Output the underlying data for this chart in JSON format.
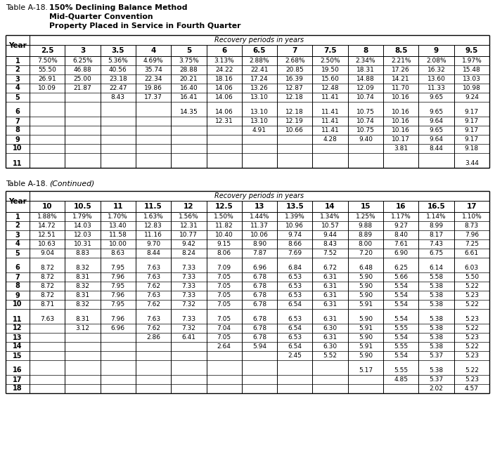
{
  "title_prefix": "Table A-18.",
  "title_bold": "  150% Declining Balance Method",
  "title_line2": "        Mid-Quarter Convention",
  "title_line3": "        Property Placed in Service in Fourth Quarter",
  "table1": {
    "header_label": "Recovery periods in years",
    "col_headers": [
      "2.5",
      "3",
      "3.5",
      "4",
      "5",
      "6",
      "6.5",
      "7",
      "7.5",
      "8",
      "8.5",
      "9",
      "9.5"
    ],
    "year_col": "Year",
    "groups": [
      [
        [
          "1",
          "7.50%",
          "6.25%",
          "5.36%",
          "4.69%",
          "3.75%",
          "3.13%",
          "2.88%",
          "2.68%",
          "2.50%",
          "2.34%",
          "2.21%",
          "2.08%",
          "1.97%"
        ],
        [
          "2",
          "55.50",
          "46.88",
          "40.56",
          "35.74",
          "28.88",
          "24.22",
          "22.41",
          "20.85",
          "19.50",
          "18.31",
          "17.26",
          "16.32",
          "15.48"
        ],
        [
          "3",
          "26.91",
          "25.00",
          "23.18",
          "22.34",
          "20.21",
          "18.16",
          "17.24",
          "16.39",
          "15.60",
          "14.88",
          "14.21",
          "13.60",
          "13.03"
        ],
        [
          "4",
          "10.09",
          "21.87",
          "22.47",
          "19.86",
          "16.40",
          "14.06",
          "13.26",
          "12.87",
          "12.48",
          "12.09",
          "11.70",
          "11.33",
          "10.98"
        ],
        [
          "5",
          "",
          "",
          "8.43",
          "17.37",
          "16.41",
          "14.06",
          "13.10",
          "12.18",
          "11.41",
          "10.74",
          "10.16",
          "9.65",
          "9.24"
        ]
      ],
      [
        [
          "6",
          "",
          "",
          "",
          "",
          "14.35",
          "14.06",
          "13.10",
          "12.18",
          "11.41",
          "10.75",
          "10.16",
          "9.65",
          "9.17"
        ],
        [
          "7",
          "",
          "",
          "",
          "",
          "",
          "12.31",
          "13.10",
          "12.19",
          "11.41",
          "10.74",
          "10.16",
          "9.64",
          "9.17"
        ],
        [
          "8",
          "",
          "",
          "",
          "",
          "",
          "",
          "4.91",
          "10.66",
          "11.41",
          "10.75",
          "10.16",
          "9.65",
          "9.17"
        ],
        [
          "9",
          "",
          "",
          "",
          "",
          "",
          "",
          "",
          "",
          "4.28",
          "9.40",
          "10.17",
          "9.64",
          "9.17"
        ],
        [
          "10",
          "",
          "",
          "",
          "",
          "",
          "",
          "",
          "",
          "",
          "",
          "3.81",
          "8.44",
          "9.18"
        ]
      ],
      [
        [
          "11",
          "",
          "",
          "",
          "",
          "",
          "",
          "",
          "",
          "",
          "",
          "",
          "",
          "3.44"
        ]
      ]
    ]
  },
  "continued_prefix": "Table A-18.",
  "continued_italic": " (Continued)",
  "table2": {
    "header_label": "Recovery periods in years",
    "col_headers": [
      "10",
      "10.5",
      "11",
      "11.5",
      "12",
      "12.5",
      "13",
      "13.5",
      "14",
      "15",
      "16",
      "16.5",
      "17"
    ],
    "year_col": "Year",
    "groups": [
      [
        [
          "1",
          "1.88%",
          "1.79%",
          "1.70%",
          "1.63%",
          "1.56%",
          "1.50%",
          "1.44%",
          "1.39%",
          "1.34%",
          "1.25%",
          "1.17%",
          "1.14%",
          "1.10%"
        ],
        [
          "2",
          "14.72",
          "14.03",
          "13.40",
          "12.83",
          "12.31",
          "11.82",
          "11.37",
          "10.96",
          "10.57",
          "9.88",
          "9.27",
          "8.99",
          "8.73"
        ],
        [
          "3",
          "12.51",
          "12.03",
          "11.58",
          "11.16",
          "10.77",
          "10.40",
          "10.06",
          "9.74",
          "9.44",
          "8.89",
          "8.40",
          "8.17",
          "7.96"
        ],
        [
          "4",
          "10.63",
          "10.31",
          "10.00",
          "9.70",
          "9.42",
          "9.15",
          "8.90",
          "8.66",
          "8.43",
          "8.00",
          "7.61",
          "7.43",
          "7.25"
        ],
        [
          "5",
          "9.04",
          "8.83",
          "8.63",
          "8.44",
          "8.24",
          "8.06",
          "7.87",
          "7.69",
          "7.52",
          "7.20",
          "6.90",
          "6.75",
          "6.61"
        ]
      ],
      [
        [
          "6",
          "8.72",
          "8.32",
          "7.95",
          "7.63",
          "7.33",
          "7.09",
          "6.96",
          "6.84",
          "6.72",
          "6.48",
          "6.25",
          "6.14",
          "6.03"
        ],
        [
          "7",
          "8.72",
          "8.31",
          "7.96",
          "7.63",
          "7.33",
          "7.05",
          "6.78",
          "6.53",
          "6.31",
          "5.90",
          "5.66",
          "5.58",
          "5.50"
        ],
        [
          "8",
          "8.72",
          "8.32",
          "7.95",
          "7.62",
          "7.33",
          "7.05",
          "6.78",
          "6.53",
          "6.31",
          "5.90",
          "5.54",
          "5.38",
          "5.22"
        ],
        [
          "9",
          "8.72",
          "8.31",
          "7.96",
          "7.63",
          "7.33",
          "7.05",
          "6.78",
          "6.53",
          "6.31",
          "5.90",
          "5.54",
          "5.38",
          "5.23"
        ],
        [
          "10",
          "8.71",
          "8.32",
          "7.95",
          "7.62",
          "7.32",
          "7.05",
          "6.78",
          "6.54",
          "6.31",
          "5.91",
          "5.54",
          "5.38",
          "5.22"
        ]
      ],
      [
        [
          "11",
          "7.63",
          "8.31",
          "7.96",
          "7.63",
          "7.33",
          "7.05",
          "6.78",
          "6.53",
          "6.31",
          "5.90",
          "5.54",
          "5.38",
          "5.23"
        ],
        [
          "12",
          "",
          "3.12",
          "6.96",
          "7.62",
          "7.32",
          "7.04",
          "6.78",
          "6.54",
          "6.30",
          "5.91",
          "5.55",
          "5.38",
          "5.22"
        ],
        [
          "13",
          "",
          "",
          "",
          "2.86",
          "6.41",
          "7.05",
          "6.78",
          "6.53",
          "6.31",
          "5.90",
          "5.54",
          "5.38",
          "5.23"
        ],
        [
          "14",
          "",
          "",
          "",
          "",
          "",
          "2.64",
          "5.94",
          "6.54",
          "6.30",
          "5.91",
          "5.55",
          "5.38",
          "5.22"
        ],
        [
          "15",
          "",
          "",
          "",
          "",
          "",
          "",
          "",
          "2.45",
          "5.52",
          "5.90",
          "5.54",
          "5.37",
          "5.23"
        ]
      ],
      [
        [
          "16",
          "",
          "",
          "",
          "",
          "",
          "",
          "",
          "",
          "",
          "5.17",
          "5.55",
          "5.38",
          "5.22"
        ],
        [
          "17",
          "",
          "",
          "",
          "",
          "",
          "",
          "",
          "",
          "",
          "",
          "4.85",
          "5.37",
          "5.23"
        ],
        [
          "18",
          "",
          "",
          "",
          "",
          "",
          "",
          "",
          "",
          "",
          "",
          "",
          "2.02",
          "4.57"
        ]
      ]
    ]
  }
}
